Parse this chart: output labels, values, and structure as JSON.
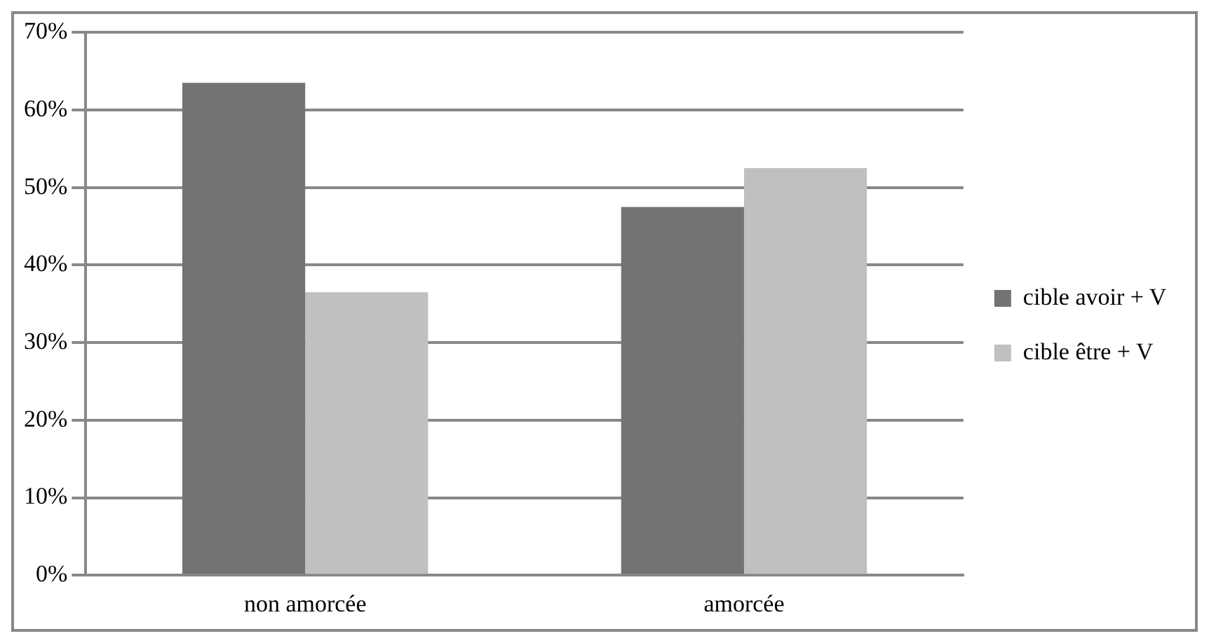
{
  "chart_data": {
    "type": "bar",
    "categories": [
      "non amorcée",
      "amorcée"
    ],
    "series": [
      {
        "name": "cible avoir + V",
        "color": "#737373",
        "values": [
          63.5,
          47.5
        ]
      },
      {
        "name": "cible être + V",
        "color": "#c0c0c0",
        "values": [
          36.5,
          52.5
        ]
      }
    ],
    "ylim": [
      0,
      70
    ],
    "yticks": [
      {
        "value": 0,
        "label": "0%"
      },
      {
        "value": 10,
        "label": "10%"
      },
      {
        "value": 20,
        "label": "20%"
      },
      {
        "value": 30,
        "label": "30%"
      },
      {
        "value": 40,
        "label": "40%"
      },
      {
        "value": 50,
        "label": "50%"
      },
      {
        "value": 60,
        "label": "60%"
      },
      {
        "value": 70,
        "label": "70%"
      }
    ],
    "grid": "y",
    "legend": "right"
  }
}
